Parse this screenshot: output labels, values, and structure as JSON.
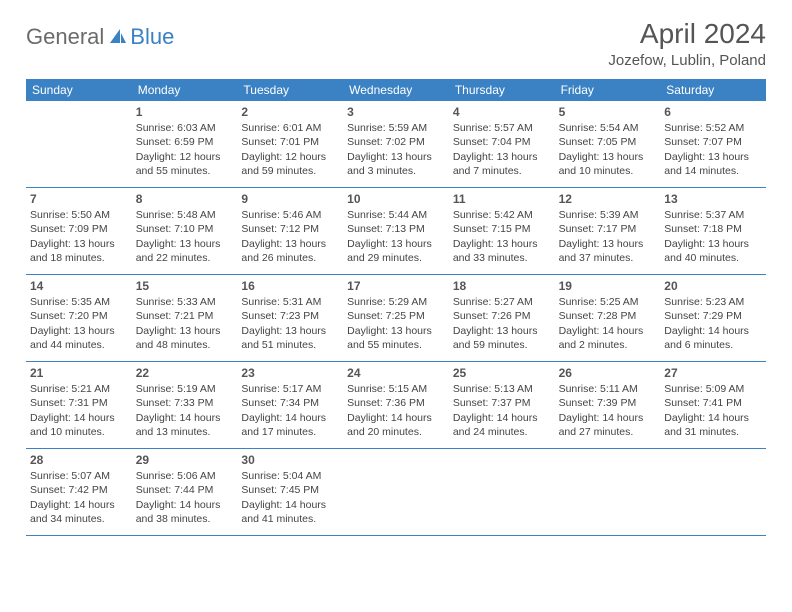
{
  "logo": {
    "part1": "General",
    "part2": "Blue"
  },
  "title": "April 2024",
  "location": "Jozefow, Lublin, Poland",
  "weekdays": [
    "Sunday",
    "Monday",
    "Tuesday",
    "Wednesday",
    "Thursday",
    "Friday",
    "Saturday"
  ],
  "colors": {
    "brand_blue": "#3b82c4",
    "text_gray": "#555555",
    "body_text": "#444444",
    "background": "#ffffff"
  },
  "calendar": {
    "type": "table",
    "start_offset": 1,
    "days": [
      {
        "n": 1,
        "sunrise": "6:03 AM",
        "sunset": "6:59 PM",
        "daylight": "12 hours and 55 minutes."
      },
      {
        "n": 2,
        "sunrise": "6:01 AM",
        "sunset": "7:01 PM",
        "daylight": "12 hours and 59 minutes."
      },
      {
        "n": 3,
        "sunrise": "5:59 AM",
        "sunset": "7:02 PM",
        "daylight": "13 hours and 3 minutes."
      },
      {
        "n": 4,
        "sunrise": "5:57 AM",
        "sunset": "7:04 PM",
        "daylight": "13 hours and 7 minutes."
      },
      {
        "n": 5,
        "sunrise": "5:54 AM",
        "sunset": "7:05 PM",
        "daylight": "13 hours and 10 minutes."
      },
      {
        "n": 6,
        "sunrise": "5:52 AM",
        "sunset": "7:07 PM",
        "daylight": "13 hours and 14 minutes."
      },
      {
        "n": 7,
        "sunrise": "5:50 AM",
        "sunset": "7:09 PM",
        "daylight": "13 hours and 18 minutes."
      },
      {
        "n": 8,
        "sunrise": "5:48 AM",
        "sunset": "7:10 PM",
        "daylight": "13 hours and 22 minutes."
      },
      {
        "n": 9,
        "sunrise": "5:46 AM",
        "sunset": "7:12 PM",
        "daylight": "13 hours and 26 minutes."
      },
      {
        "n": 10,
        "sunrise": "5:44 AM",
        "sunset": "7:13 PM",
        "daylight": "13 hours and 29 minutes."
      },
      {
        "n": 11,
        "sunrise": "5:42 AM",
        "sunset": "7:15 PM",
        "daylight": "13 hours and 33 minutes."
      },
      {
        "n": 12,
        "sunrise": "5:39 AM",
        "sunset": "7:17 PM",
        "daylight": "13 hours and 37 minutes."
      },
      {
        "n": 13,
        "sunrise": "5:37 AM",
        "sunset": "7:18 PM",
        "daylight": "13 hours and 40 minutes."
      },
      {
        "n": 14,
        "sunrise": "5:35 AM",
        "sunset": "7:20 PM",
        "daylight": "13 hours and 44 minutes."
      },
      {
        "n": 15,
        "sunrise": "5:33 AM",
        "sunset": "7:21 PM",
        "daylight": "13 hours and 48 minutes."
      },
      {
        "n": 16,
        "sunrise": "5:31 AM",
        "sunset": "7:23 PM",
        "daylight": "13 hours and 51 minutes."
      },
      {
        "n": 17,
        "sunrise": "5:29 AM",
        "sunset": "7:25 PM",
        "daylight": "13 hours and 55 minutes."
      },
      {
        "n": 18,
        "sunrise": "5:27 AM",
        "sunset": "7:26 PM",
        "daylight": "13 hours and 59 minutes."
      },
      {
        "n": 19,
        "sunrise": "5:25 AM",
        "sunset": "7:28 PM",
        "daylight": "14 hours and 2 minutes."
      },
      {
        "n": 20,
        "sunrise": "5:23 AM",
        "sunset": "7:29 PM",
        "daylight": "14 hours and 6 minutes."
      },
      {
        "n": 21,
        "sunrise": "5:21 AM",
        "sunset": "7:31 PM",
        "daylight": "14 hours and 10 minutes."
      },
      {
        "n": 22,
        "sunrise": "5:19 AM",
        "sunset": "7:33 PM",
        "daylight": "14 hours and 13 minutes."
      },
      {
        "n": 23,
        "sunrise": "5:17 AM",
        "sunset": "7:34 PM",
        "daylight": "14 hours and 17 minutes."
      },
      {
        "n": 24,
        "sunrise": "5:15 AM",
        "sunset": "7:36 PM",
        "daylight": "14 hours and 20 minutes."
      },
      {
        "n": 25,
        "sunrise": "5:13 AM",
        "sunset": "7:37 PM",
        "daylight": "14 hours and 24 minutes."
      },
      {
        "n": 26,
        "sunrise": "5:11 AM",
        "sunset": "7:39 PM",
        "daylight": "14 hours and 27 minutes."
      },
      {
        "n": 27,
        "sunrise": "5:09 AM",
        "sunset": "7:41 PM",
        "daylight": "14 hours and 31 minutes."
      },
      {
        "n": 28,
        "sunrise": "5:07 AM",
        "sunset": "7:42 PM",
        "daylight": "14 hours and 34 minutes."
      },
      {
        "n": 29,
        "sunrise": "5:06 AM",
        "sunset": "7:44 PM",
        "daylight": "14 hours and 38 minutes."
      },
      {
        "n": 30,
        "sunrise": "5:04 AM",
        "sunset": "7:45 PM",
        "daylight": "14 hours and 41 minutes."
      }
    ]
  },
  "labels": {
    "sunrise": "Sunrise:",
    "sunset": "Sunset:",
    "daylight": "Daylight:"
  }
}
